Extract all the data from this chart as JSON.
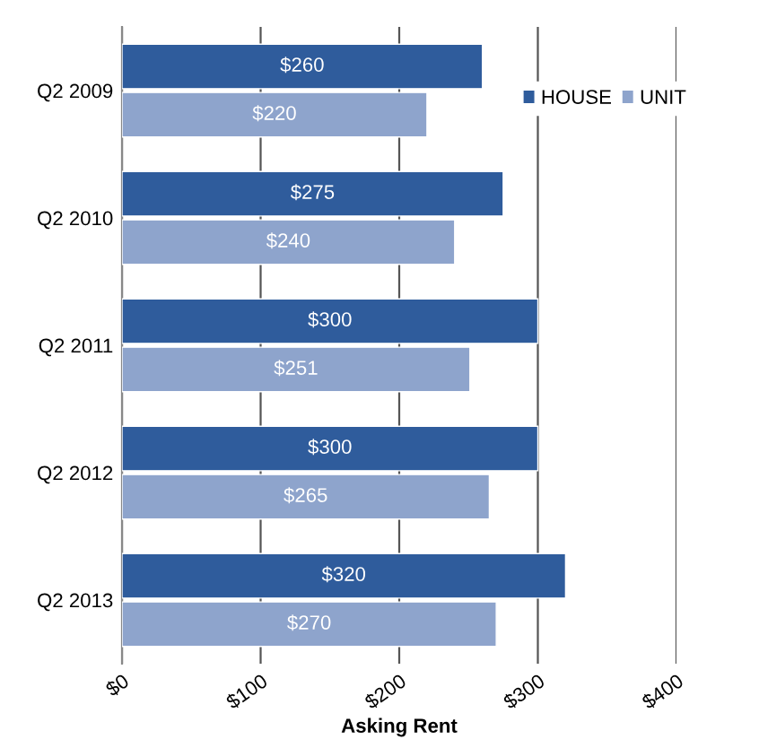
{
  "chart_data": {
    "type": "bar",
    "orientation": "horizontal",
    "xlabel": "Asking Rent",
    "categories": [
      "Q2 2009",
      "Q2 2010",
      "Q2 2011",
      "Q2 2012",
      "Q2 2013"
    ],
    "series": [
      {
        "name": "HOUSE",
        "color": "#2f5c9c",
        "values": [
          260,
          275,
          300,
          300,
          320
        ],
        "value_labels": [
          "$260",
          "$275",
          "$300",
          "$300",
          "$320"
        ]
      },
      {
        "name": "UNIT",
        "color": "#8ea4cc",
        "values": [
          220,
          240,
          251,
          265,
          270
        ],
        "value_labels": [
          "$220",
          "$240",
          "$251",
          "$265",
          "$270"
        ]
      }
    ],
    "xlim": [
      0,
      400
    ],
    "xticks": [
      {
        "value": 0,
        "label": "$0"
      },
      {
        "value": 100,
        "label": "$100"
      },
      {
        "value": 200,
        "label": "$200"
      },
      {
        "value": 300,
        "label": "$300"
      },
      {
        "value": 400,
        "label": "$400"
      }
    ],
    "grid": "x",
    "legend": "top right"
  }
}
